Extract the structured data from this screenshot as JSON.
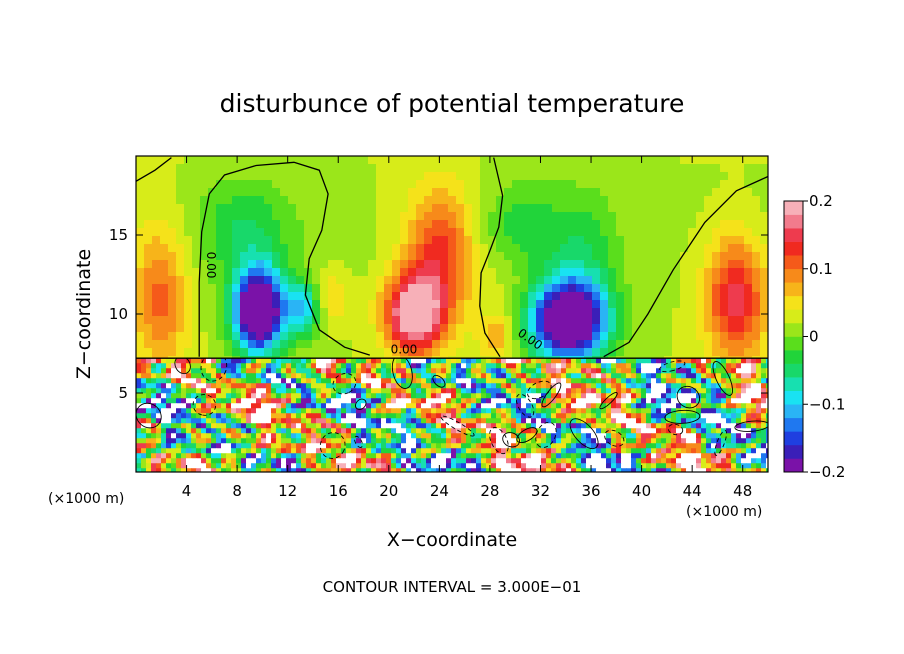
{
  "chart_data": {
    "type": "heatmap",
    "title": "disturbunce of potential temperature",
    "xlabel": "X−coordinate",
    "ylabel": "Z−coordinate",
    "x_unit_left": "(×1000 m)",
    "x_unit_right": "(×1000 m)",
    "footer": "CONTOUR INTERVAL = 3.000E−01",
    "contour_label": "0.00",
    "xlim": [
      0,
      50
    ],
    "ylim": [
      0,
      20
    ],
    "x_ticks": [
      4,
      8,
      12,
      16,
      20,
      24,
      28,
      32,
      36,
      40,
      44,
      48
    ],
    "y_ticks": [
      5,
      10,
      15
    ],
    "colorbar": {
      "range": [
        -0.2,
        0.2
      ],
      "ticks": [
        {
          "value": 0.2,
          "label": "0.2"
        },
        {
          "value": 0.1,
          "label": "0.1"
        },
        {
          "value": 0,
          "label": "0"
        },
        {
          "value": -0.1,
          "label": "−0.1"
        },
        {
          "value": -0.2,
          "label": "−0.2"
        }
      ],
      "colors": [
        "#7a12a8",
        "#3a1fb8",
        "#1f3fe0",
        "#1f78f0",
        "#2ab4f5",
        "#19e2f2",
        "#17e0b0",
        "#18d86a",
        "#21d43a",
        "#5ade1c",
        "#9be61a",
        "#d7ec19",
        "#f5e21a",
        "#f7b41a",
        "#f78a1a",
        "#f55a1a",
        "#f02a20",
        "#ee3b4e",
        "#f27b8c",
        "#f7b0b8"
      ]
    },
    "boundary_z": 7.2,
    "anomalies": [
      {
        "x": 9.7,
        "z": 10.2,
        "amp": -0.3,
        "sx": 1.9,
        "sz": 2.6
      },
      {
        "x": 13.2,
        "z": 10.3,
        "amp": -0.12,
        "sx": 1.4,
        "sz": 1.6
      },
      {
        "x": 34.2,
        "z": 9.6,
        "amp": -0.3,
        "sx": 3.0,
        "sz": 2.5
      },
      {
        "x": 8.5,
        "z": 15.5,
        "amp": -0.05,
        "sx": 3.5,
        "sz": 3.0
      },
      {
        "x": 30.5,
        "z": 15.5,
        "amp": -0.06,
        "sx": 3.5,
        "sz": 3.0
      },
      {
        "x": 35.5,
        "z": 14.0,
        "amp": -0.06,
        "sx": 3.0,
        "sz": 4.0
      },
      {
        "x": 22.0,
        "z": 10.0,
        "amp": 0.2,
        "sx": 2.3,
        "sz": 2.5
      },
      {
        "x": 24.0,
        "z": 14.0,
        "amp": 0.1,
        "sx": 2.5,
        "sz": 4.0
      },
      {
        "x": 2.0,
        "z": 11.0,
        "amp": 0.09,
        "sx": 2.2,
        "sz": 4.5
      },
      {
        "x": 15.5,
        "z": 11.0,
        "amp": 0.05,
        "sx": 1.5,
        "sz": 1.8
      },
      {
        "x": 47.5,
        "z": 11.0,
        "amp": 0.14,
        "sx": 2.5,
        "sz": 4.0
      },
      {
        "x": 28.5,
        "z": 8.5,
        "amp": 0.06,
        "sx": 1.2,
        "sz": 1.3
      }
    ]
  }
}
